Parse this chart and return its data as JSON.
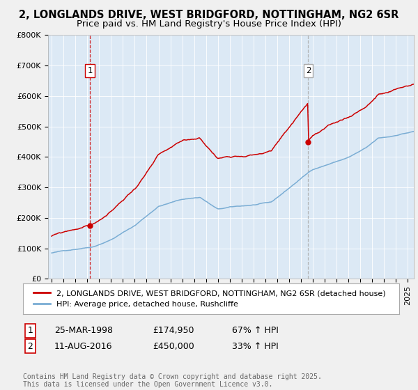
{
  "title1": "2, LONGLANDS DRIVE, WEST BRIDGFORD, NOTTINGHAM, NG2 6SR",
  "title2": "Price paid vs. HM Land Registry's House Price Index (HPI)",
  "background_color": "#dce9f5",
  "plot_bg_color": "#dce9f5",
  "outer_bg_color": "#f0f0f0",
  "red_color": "#cc0000",
  "blue_color": "#7aadd4",
  "sale1_dashed_color": "#cc0000",
  "sale2_dashed_color": "#aaaaaa",
  "sale1_date_num": 1998.23,
  "sale1_price": 174950,
  "sale1_label": "1",
  "sale2_date_num": 2016.61,
  "sale2_price": 450000,
  "sale2_label": "2",
  "ylim_max": 800000,
  "xlim_min": 1994.7,
  "xlim_max": 2025.5,
  "legend_line1": "2, LONGLANDS DRIVE, WEST BRIDGFORD, NOTTINGHAM, NG2 6SR (detached house)",
  "legend_line2": "HPI: Average price, detached house, Rushcliffe",
  "table_row1": [
    "1",
    "25-MAR-1998",
    "£174,950",
    "67% ↑ HPI"
  ],
  "table_row2": [
    "2",
    "11-AUG-2016",
    "£450,000",
    "33% ↑ HPI"
  ],
  "footer": "Contains HM Land Registry data © Crown copyright and database right 2025.\nThis data is licensed under the Open Government Licence v3.0.",
  "title_fontsize": 10.5,
  "subtitle_fontsize": 9.5,
  "tick_fontsize": 8,
  "legend_fontsize": 8,
  "table_fontsize": 9,
  "footer_fontsize": 7
}
